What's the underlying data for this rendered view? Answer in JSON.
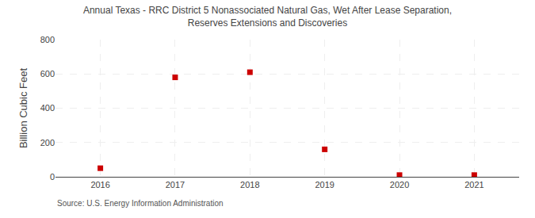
{
  "chart_data": {
    "type": "scatter",
    "title": "Annual Texas - RRC District 5 Nonassociated Natural Gas, Wet After Lease Separation,\nReserves Extensions and Discoveries",
    "y_label": "Billion Cubic Feet",
    "annotations": [
      "Source: U.S. Energy Information Administration"
    ],
    "x": [
      2016,
      2017,
      2018,
      2019,
      2020,
      2021
    ],
    "values": [
      50,
      580,
      610,
      160,
      10,
      10
    ],
    "color": "#cc0000",
    "marker": "square",
    "xlim": [
      2015.4,
      2021.6
    ],
    "xticks": [
      2016,
      2017,
      2018,
      2019,
      2020,
      2021
    ],
    "ylim": [
      0,
      800
    ],
    "yticks": [
      0,
      200,
      400,
      600,
      800
    ],
    "grid": true
  }
}
